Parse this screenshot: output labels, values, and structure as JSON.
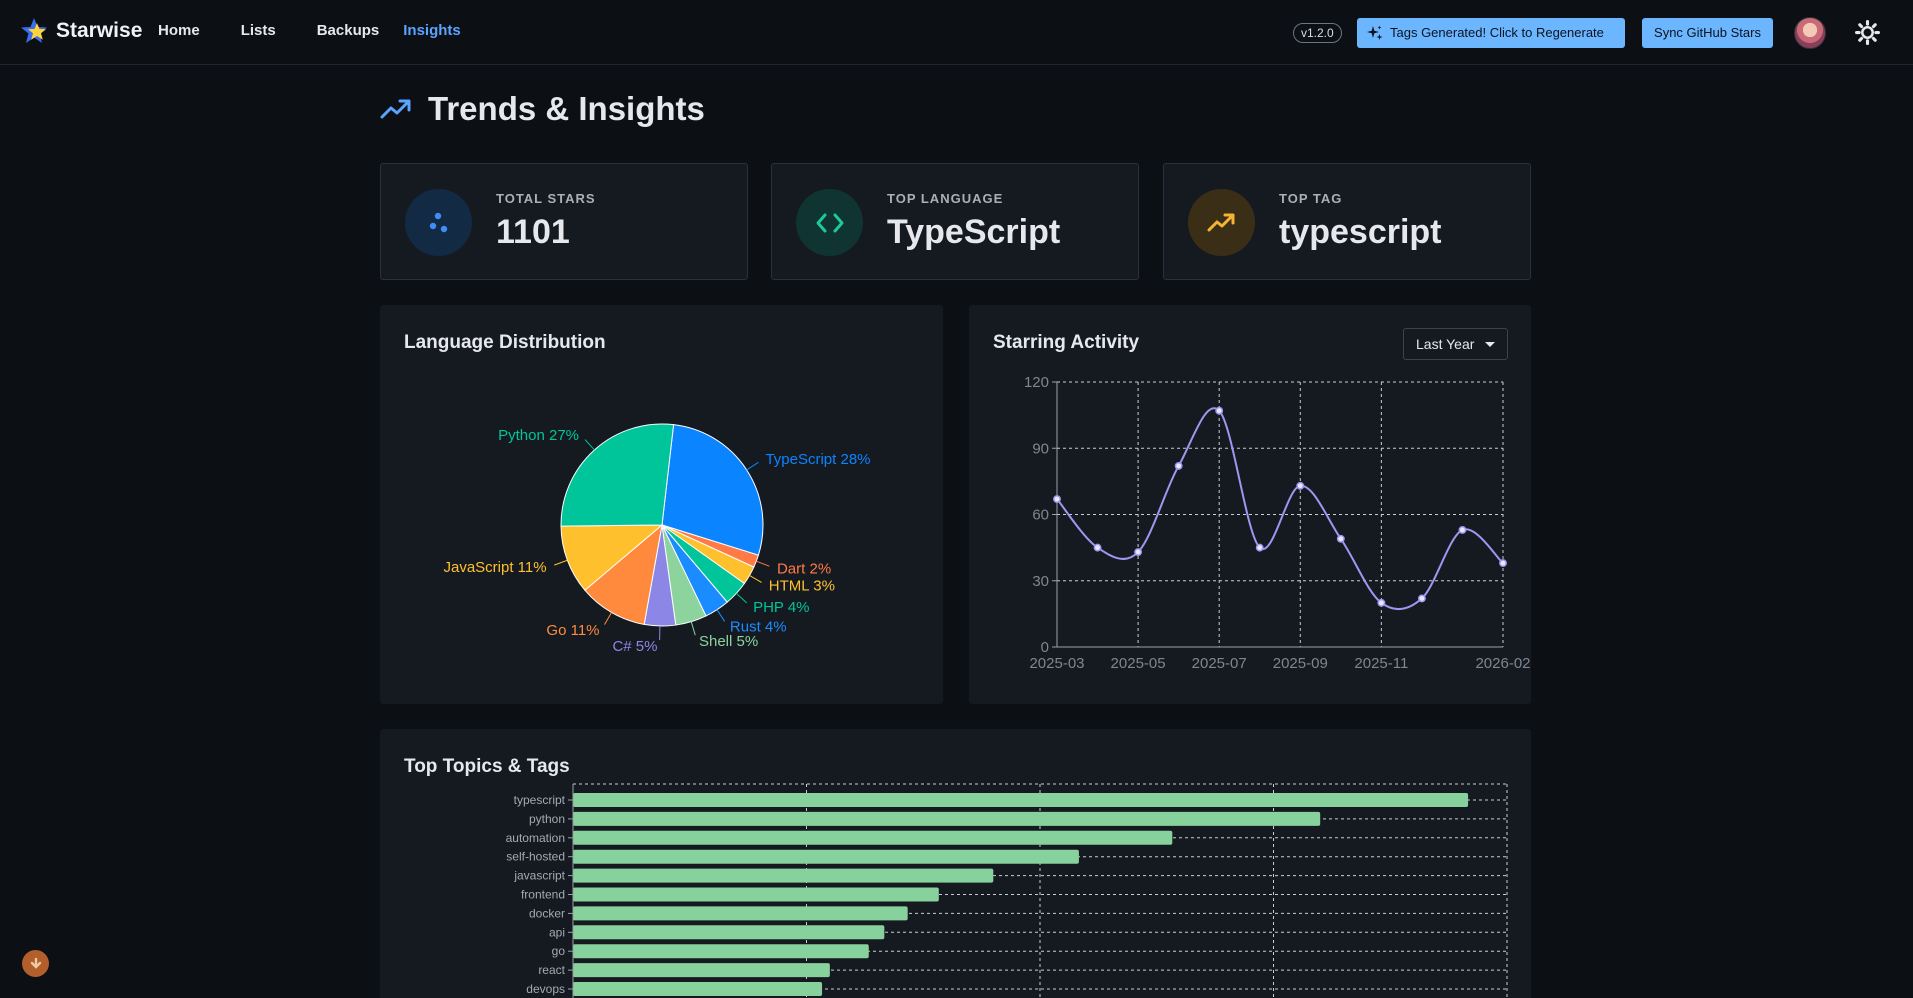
{
  "nav": {
    "brand": "Starwise",
    "links": [
      "Home",
      "Lists",
      "Backups",
      "Insights"
    ],
    "active": "Insights",
    "version": "v1.2.0",
    "tags_button": "Tags Generated! Click to Regenerate",
    "sync_button": "Sync GitHub Stars"
  },
  "page": {
    "title": "Trends & Insights"
  },
  "stats": {
    "total_stars": {
      "label": "TOTAL STARS",
      "value": "1101"
    },
    "top_language": {
      "label": "TOP LANGUAGE",
      "value": "TypeScript"
    },
    "top_tag": {
      "label": "TOP TAG",
      "value": "typescript"
    }
  },
  "language_panel": {
    "title": "Language Distribution"
  },
  "activity_panel": {
    "title": "Starring Activity",
    "range": "Last Year"
  },
  "topics_panel": {
    "title": "Top Topics & Tags"
  },
  "colors": {
    "accent": "#5aa3ff",
    "button": "#6cb5ff",
    "line": "#9f96f0",
    "bar": "#86d19c"
  },
  "chart_data": [
    {
      "type": "pie",
      "title": "Language Distribution",
      "slices": [
        {
          "label": "TypeScript",
          "value": 28,
          "color": "#0a84ff"
        },
        {
          "label": "Dart",
          "value": 2,
          "color": "#ff7a45"
        },
        {
          "label": "HTML",
          "value": 3,
          "color": "#ffc02e"
        },
        {
          "label": "PHP",
          "value": 4,
          "color": "#00c49a"
        },
        {
          "label": "Rust",
          "value": 4,
          "color": "#1a8cff"
        },
        {
          "label": "Shell",
          "value": 5,
          "color": "#8cd39e"
        },
        {
          "label": "C#",
          "value": 5,
          "color": "#8c86e6"
        },
        {
          "label": "Go",
          "value": 11,
          "color": "#ff8a3d"
        },
        {
          "label": "JavaScript",
          "value": 11,
          "color": "#ffc02e"
        },
        {
          "label": "Python",
          "value": 27,
          "color": "#00c49a"
        }
      ]
    },
    {
      "type": "line",
      "title": "Starring Activity",
      "x": [
        "2025-03",
        "2025-04",
        "2025-05",
        "2025-06",
        "2025-07",
        "2025-08",
        "2025-09",
        "2025-10",
        "2025-11",
        "2025-12",
        "2026-01",
        "2026-02"
      ],
      "values": [
        67,
        45,
        43,
        82,
        107,
        45,
        73,
        49,
        20,
        22,
        53,
        38
      ],
      "xticks": [
        "2025-03",
        "2025-05",
        "2025-07",
        "2025-09",
        "2025-11",
        "2026-02"
      ],
      "yticks": [
        0,
        30,
        60,
        90,
        120
      ],
      "ylim": [
        0,
        120
      ]
    },
    {
      "type": "bar",
      "orientation": "horizontal",
      "title": "Top Topics & Tags",
      "categories": [
        "typescript",
        "python",
        "automation",
        "self-hosted",
        "javascript",
        "frontend",
        "docker",
        "api",
        "go",
        "react",
        "devops"
      ],
      "values": [
        115,
        96,
        77,
        65,
        54,
        47,
        43,
        40,
        38,
        33,
        32
      ],
      "xlim": [
        0,
        120
      ]
    }
  ]
}
